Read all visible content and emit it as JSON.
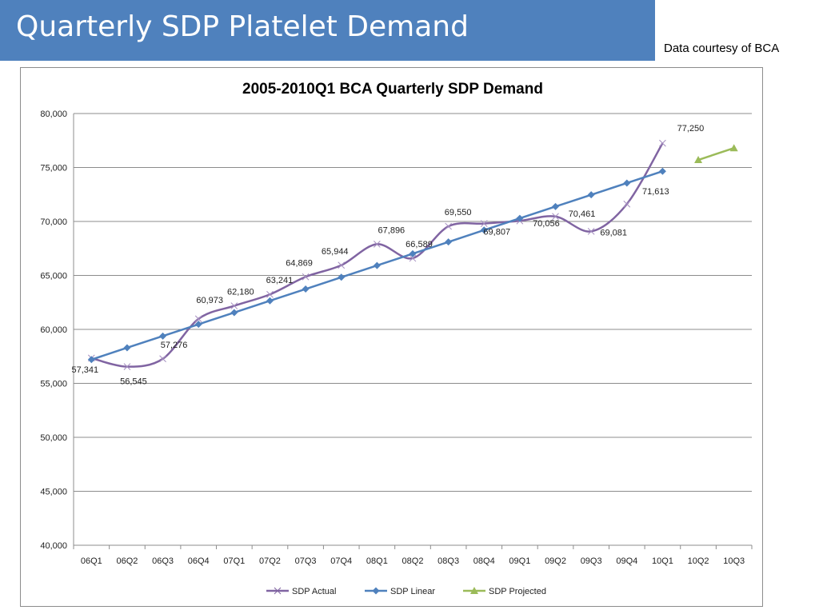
{
  "slide": {
    "title": "Quarterly SDP Platelet Demand",
    "credit": "Data courtesy of BCA",
    "header_color": "#4f81bd"
  },
  "chart_data": {
    "type": "line",
    "title": "2005-2010Q1 BCA Quarterly SDP Demand",
    "xlabel": "",
    "ylabel": "",
    "categories": [
      "06Q1",
      "06Q2",
      "06Q3",
      "06Q4",
      "07Q1",
      "07Q2",
      "07Q3",
      "07Q4",
      "08Q1",
      "08Q2",
      "08Q3",
      "08Q4",
      "09Q1",
      "09Q2",
      "09Q3",
      "09Q4",
      "10Q1",
      "10Q2",
      "10Q3"
    ],
    "ylim": [
      40000,
      80000
    ],
    "yticks": [
      "40,000",
      "45,000",
      "50,000",
      "55,000",
      "60,000",
      "65,000",
      "70,000",
      "75,000",
      "80,000"
    ],
    "grid": true,
    "legend_position": "bottom",
    "series": [
      {
        "name": "SDP Actual",
        "color": "#8064a2",
        "marker": "x",
        "smooth": true,
        "values": [
          57341,
          56545,
          57276,
          60973,
          62180,
          63241,
          64869,
          65944,
          67896,
          66589,
          69550,
          69807,
          70056,
          70461,
          69081,
          71613,
          77250,
          null,
          null
        ],
        "labels": [
          "57,341",
          "56,545",
          "57,276",
          "60,973",
          "62,180",
          "63,241",
          "64,869",
          "65,944",
          "67,896",
          "66,589",
          "69,550",
          "69,807",
          "70,056",
          "70,461",
          "69,081",
          "71,613",
          "77,250",
          null,
          null
        ]
      },
      {
        "name": "SDP Linear",
        "color": "#4f81bd",
        "marker": "diamond",
        "smooth": false,
        "values": [
          57200,
          58300,
          59380,
          60470,
          61560,
          62650,
          63740,
          64830,
          65920,
          67010,
          68100,
          69200,
          70290,
          71380,
          72470,
          73560,
          74650,
          null,
          null
        ]
      },
      {
        "name": "SDP Projected",
        "color": "#9bbb59",
        "marker": "triangle",
        "smooth": false,
        "values": [
          null,
          null,
          null,
          null,
          null,
          null,
          null,
          null,
          null,
          null,
          null,
          null,
          null,
          null,
          null,
          null,
          null,
          75700,
          76800
        ]
      }
    ]
  }
}
